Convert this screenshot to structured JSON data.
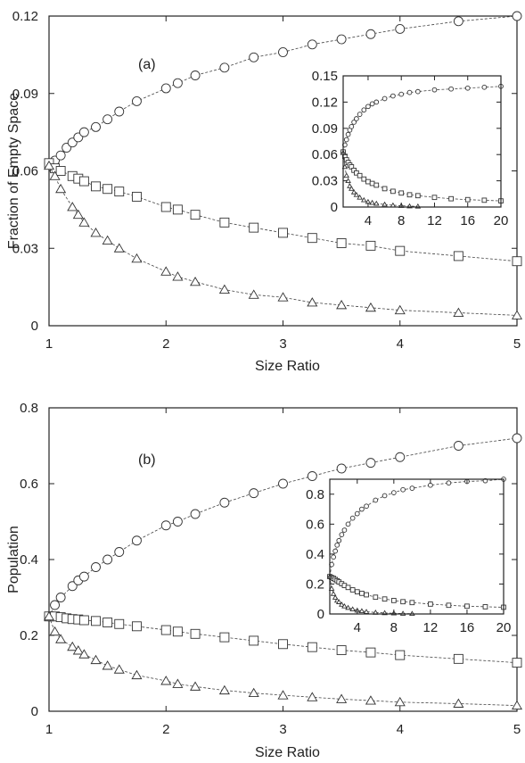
{
  "chart_data": [
    {
      "type": "scatter",
      "panel_label": "(a)",
      "xlabel": "Size Ratio",
      "ylabel": "Fraction of Empty Space",
      "xlim": [
        1,
        5
      ],
      "ylim": [
        0,
        0.12
      ],
      "xticks": [
        "1",
        "2",
        "3",
        "4",
        "5"
      ],
      "yticks": [
        "0",
        "0.03",
        "0.06",
        "0.09",
        "0.12"
      ],
      "series": [
        {
          "marker": "circle",
          "x": [
            1.0,
            1.05,
            1.1,
            1.15,
            1.2,
            1.25,
            1.3,
            1.4,
            1.5,
            1.6,
            1.75,
            2.0,
            2.1,
            2.25,
            2.5,
            2.75,
            3.0,
            3.25,
            3.5,
            3.75,
            4.0,
            4.5,
            5.0
          ],
          "y": [
            0.063,
            0.064,
            0.066,
            0.069,
            0.071,
            0.073,
            0.075,
            0.077,
            0.08,
            0.083,
            0.087,
            0.092,
            0.094,
            0.097,
            0.1,
            0.104,
            0.106,
            0.109,
            0.111,
            0.113,
            0.115,
            0.118,
            0.12
          ]
        },
        {
          "marker": "square",
          "x": [
            1.0,
            1.05,
            1.1,
            1.2,
            1.25,
            1.3,
            1.4,
            1.5,
            1.6,
            1.75,
            2.0,
            2.1,
            2.25,
            2.5,
            2.75,
            3.0,
            3.25,
            3.5,
            3.75,
            4.0,
            4.5,
            5.0
          ],
          "y": [
            0.063,
            0.061,
            0.06,
            0.058,
            0.057,
            0.056,
            0.054,
            0.053,
            0.052,
            0.05,
            0.046,
            0.045,
            0.043,
            0.04,
            0.038,
            0.036,
            0.034,
            0.032,
            0.031,
            0.029,
            0.027,
            0.025
          ]
        },
        {
          "marker": "triangle",
          "x": [
            1.0,
            1.05,
            1.1,
            1.2,
            1.25,
            1.3,
            1.4,
            1.5,
            1.6,
            1.75,
            2.0,
            2.1,
            2.25,
            2.5,
            2.75,
            3.0,
            3.25,
            3.5,
            3.75,
            4.0,
            4.5,
            5.0
          ],
          "y": [
            0.062,
            0.058,
            0.053,
            0.046,
            0.043,
            0.04,
            0.036,
            0.033,
            0.03,
            0.026,
            0.021,
            0.019,
            0.017,
            0.014,
            0.012,
            0.011,
            0.009,
            0.008,
            0.007,
            0.006,
            0.005,
            0.004
          ]
        }
      ],
      "inset": {
        "xlim": [
          1,
          20
        ],
        "ylim": [
          0,
          0.15
        ],
        "xticks": [
          "4",
          "8",
          "12",
          "16",
          "20"
        ],
        "yticks": [
          "0",
          "0.03",
          "0.06",
          "0.09",
          "0.12",
          "0.15"
        ],
        "series": [
          {
            "marker": "circle",
            "x": [
              1,
              1.2,
              1.4,
              1.6,
              1.8,
              2,
              2.3,
              2.6,
              3,
              3.5,
              4,
              4.5,
              5,
              6,
              7,
              8,
              9,
              10,
              12,
              14,
              16,
              18,
              20
            ],
            "y": [
              0.063,
              0.071,
              0.077,
              0.083,
              0.088,
              0.092,
              0.097,
              0.101,
              0.106,
              0.111,
              0.115,
              0.118,
              0.12,
              0.124,
              0.127,
              0.129,
              0.131,
              0.132,
              0.134,
              0.135,
              0.136,
              0.137,
              0.138
            ]
          },
          {
            "marker": "square",
            "x": [
              1,
              1.2,
              1.4,
              1.6,
              1.8,
              2,
              2.3,
              2.6,
              3,
              3.5,
              4,
              4.5,
              5,
              6,
              7,
              8,
              9,
              10,
              12,
              14,
              16,
              18,
              20
            ],
            "y": [
              0.063,
              0.058,
              0.054,
              0.051,
              0.048,
              0.046,
              0.042,
              0.039,
              0.036,
              0.032,
              0.029,
              0.027,
              0.025,
              0.021,
              0.018,
              0.016,
              0.014,
              0.013,
              0.011,
              0.0095,
              0.0085,
              0.0078,
              0.007
            ]
          },
          {
            "marker": "triangle",
            "x": [
              1,
              1.2,
              1.4,
              1.6,
              1.8,
              2,
              2.3,
              2.6,
              3,
              3.5,
              4,
              4.5,
              5,
              6,
              7,
              8,
              9,
              10
            ],
            "y": [
              0.062,
              0.046,
              0.036,
              0.03,
              0.024,
              0.021,
              0.017,
              0.014,
              0.011,
              0.008,
              0.006,
              0.005,
              0.004,
              0.003,
              0.002,
              0.0015,
              0.001,
              0.0008
            ]
          }
        ]
      }
    },
    {
      "type": "scatter",
      "panel_label": "(b)",
      "xlabel": "Size Ratio",
      "ylabel": "Population",
      "xlim": [
        1,
        5
      ],
      "ylim": [
        0,
        0.8
      ],
      "xticks": [
        "1",
        "2",
        "3",
        "4",
        "5"
      ],
      "yticks": [
        "0",
        "0.2",
        "0.4",
        "0.6",
        "0.8"
      ],
      "series": [
        {
          "marker": "circle",
          "x": [
            1.0,
            1.05,
            1.1,
            1.2,
            1.25,
            1.3,
            1.4,
            1.5,
            1.6,
            1.75,
            2.0,
            2.1,
            2.25,
            2.5,
            2.75,
            3.0,
            3.25,
            3.5,
            3.75,
            4.0,
            4.5,
            5.0
          ],
          "y": [
            0.25,
            0.28,
            0.3,
            0.33,
            0.345,
            0.355,
            0.38,
            0.4,
            0.42,
            0.45,
            0.49,
            0.5,
            0.52,
            0.55,
            0.575,
            0.6,
            0.62,
            0.64,
            0.655,
            0.67,
            0.7,
            0.72
          ]
        },
        {
          "marker": "square",
          "x": [
            1.0,
            1.05,
            1.1,
            1.15,
            1.2,
            1.25,
            1.3,
            1.4,
            1.5,
            1.6,
            1.75,
            2.0,
            2.1,
            2.25,
            2.5,
            2.75,
            3.0,
            3.25,
            3.5,
            3.75,
            4.0,
            4.5,
            5.0
          ],
          "y": [
            0.25,
            0.25,
            0.248,
            0.245,
            0.243,
            0.242,
            0.24,
            0.238,
            0.234,
            0.23,
            0.224,
            0.214,
            0.21,
            0.204,
            0.195,
            0.186,
            0.177,
            0.169,
            0.161,
            0.155,
            0.148,
            0.138,
            0.128
          ]
        },
        {
          "marker": "triangle",
          "x": [
            1.0,
            1.05,
            1.1,
            1.2,
            1.25,
            1.3,
            1.4,
            1.5,
            1.6,
            1.75,
            2.0,
            2.1,
            2.25,
            2.5,
            2.75,
            3.0,
            3.25,
            3.5,
            3.75,
            4.0,
            4.5,
            5.0
          ],
          "y": [
            0.25,
            0.21,
            0.19,
            0.17,
            0.16,
            0.15,
            0.135,
            0.12,
            0.11,
            0.095,
            0.08,
            0.072,
            0.065,
            0.055,
            0.048,
            0.042,
            0.037,
            0.032,
            0.028,
            0.024,
            0.02,
            0.015
          ]
        }
      ],
      "inset": {
        "xlim": [
          1,
          20
        ],
        "ylim": [
          0,
          0.9
        ],
        "xticks": [
          "4",
          "8",
          "12",
          "16",
          "20"
        ],
        "yticks": [
          "0",
          "0.2",
          "0.4",
          "0.6",
          "0.8"
        ],
        "series": [
          {
            "marker": "circle",
            "x": [
              1,
              1.2,
              1.4,
              1.6,
              1.8,
              2,
              2.3,
              2.6,
              3,
              3.5,
              4,
              4.5,
              5,
              6,
              7,
              8,
              9,
              10,
              12,
              14,
              16,
              18,
              20
            ],
            "y": [
              0.25,
              0.33,
              0.38,
              0.42,
              0.46,
              0.49,
              0.53,
              0.56,
              0.6,
              0.64,
              0.67,
              0.7,
              0.72,
              0.76,
              0.79,
              0.81,
              0.83,
              0.84,
              0.86,
              0.875,
              0.885,
              0.89,
              0.9
            ]
          },
          {
            "marker": "square",
            "x": [
              1,
              1.2,
              1.4,
              1.6,
              1.8,
              2,
              2.3,
              2.6,
              3,
              3.5,
              4,
              4.5,
              5,
              6,
              7,
              8,
              9,
              10,
              12,
              14,
              16,
              18,
              20
            ],
            "y": [
              0.25,
              0.243,
              0.238,
              0.23,
              0.222,
              0.214,
              0.202,
              0.19,
              0.177,
              0.161,
              0.148,
              0.138,
              0.128,
              0.112,
              0.1,
              0.09,
              0.082,
              0.076,
              0.066,
              0.058,
              0.052,
              0.048,
              0.045
            ]
          },
          {
            "marker": "triangle",
            "x": [
              1,
              1.2,
              1.4,
              1.6,
              1.8,
              2,
              2.3,
              2.6,
              3,
              3.5,
              4,
              4.5,
              5,
              6,
              7,
              8,
              9,
              10
            ],
            "y": [
              0.25,
              0.17,
              0.135,
              0.11,
              0.09,
              0.08,
              0.063,
              0.052,
              0.042,
              0.032,
              0.024,
              0.02,
              0.015,
              0.01,
              0.007,
              0.005,
              0.003,
              0.002
            ]
          }
        ]
      }
    }
  ]
}
